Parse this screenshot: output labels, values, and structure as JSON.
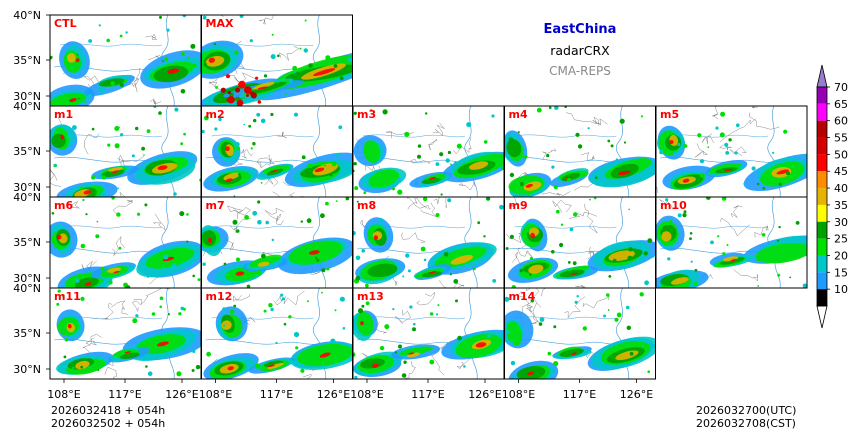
{
  "header": {
    "region": "EastChina",
    "variable": "radarCRX",
    "model": "CMA-REPS"
  },
  "footer": {
    "init_utc": "2026032418  +  054h",
    "init_cst": "2026032502  +  054h",
    "valid_utc": "2026032700(UTC)",
    "valid_cst": "2026032708(CST)"
  },
  "axes": {
    "lat_ticks": [
      "40°N",
      "35°N",
      "30°N"
    ],
    "lon_ticks": [
      "108°E",
      "117°E",
      "126°E"
    ]
  },
  "panels": [
    {
      "id": "CTL",
      "label": "CTL",
      "row": 0,
      "col": 0
    },
    {
      "id": "MAX",
      "label": "MAX",
      "row": 0,
      "col": 1
    },
    {
      "id": "m1",
      "label": "m1",
      "row": 1,
      "col": 0
    },
    {
      "id": "m2",
      "label": "m2",
      "row": 1,
      "col": 1
    },
    {
      "id": "m3",
      "label": "m3",
      "row": 1,
      "col": 2
    },
    {
      "id": "m4",
      "label": "m4",
      "row": 1,
      "col": 3
    },
    {
      "id": "m5",
      "label": "m5",
      "row": 1,
      "col": 4
    },
    {
      "id": "m6",
      "label": "m6",
      "row": 2,
      "col": 0
    },
    {
      "id": "m7",
      "label": "m7",
      "row": 2,
      "col": 1
    },
    {
      "id": "m8",
      "label": "m8",
      "row": 2,
      "col": 2
    },
    {
      "id": "m9",
      "label": "m9",
      "row": 2,
      "col": 3
    },
    {
      "id": "m10",
      "label": "m10",
      "row": 2,
      "col": 4
    },
    {
      "id": "m11",
      "label": "m11",
      "row": 3,
      "col": 0
    },
    {
      "id": "m12",
      "label": "m12",
      "row": 3,
      "col": 1
    },
    {
      "id": "m13",
      "label": "m13",
      "row": 3,
      "col": 2
    },
    {
      "id": "m14",
      "label": "m14",
      "row": 3,
      "col": 3
    }
  ],
  "colorbar": {
    "ticks": [
      "10",
      "15",
      "20",
      "25",
      "30",
      "35",
      "40",
      "45",
      "50",
      "55",
      "60",
      "65",
      "70"
    ],
    "colors": [
      "#ffffff",
      "#1e9bff",
      "#00c8c8",
      "#00e000",
      "#00a000",
      "#ffff00",
      "#e6b400",
      "#ff8c00",
      "#ff0000",
      "#d20000",
      "#b40000",
      "#ff00ff",
      "#9600b4",
      "#9b7ad2"
    ]
  },
  "colors": {
    "label": "#ff0000",
    "coast": "#4aa3df",
    "border": "#555555"
  }
}
